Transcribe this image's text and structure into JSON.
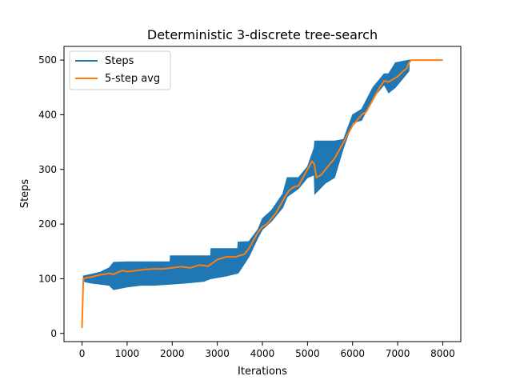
{
  "chart_data": {
    "type": "line",
    "title": "Deterministic 3-discrete tree-search",
    "xlabel": "Iterations",
    "ylabel": "Steps",
    "xlim": [
      -400,
      8400
    ],
    "ylim": [
      -15,
      525
    ],
    "xticks": [
      0,
      1000,
      2000,
      3000,
      4000,
      5000,
      6000,
      7000,
      8000
    ],
    "yticks": [
      0,
      100,
      200,
      300,
      400,
      500
    ],
    "grid": false,
    "legend": {
      "placement": "top-left"
    },
    "series": [
      {
        "name": "Steps",
        "color": "#1f77b4",
        "envelope": [
          {
            "x": 0,
            "low": 10,
            "high": 10
          },
          {
            "x": 30,
            "low": 95,
            "high": 105
          },
          {
            "x": 200,
            "low": 92,
            "high": 108
          },
          {
            "x": 400,
            "low": 90,
            "high": 112
          },
          {
            "x": 600,
            "low": 88,
            "high": 120
          },
          {
            "x": 700,
            "low": 80,
            "high": 130
          },
          {
            "x": 1000,
            "low": 85,
            "high": 131
          },
          {
            "x": 1300,
            "low": 88,
            "high": 131
          },
          {
            "x": 1600,
            "low": 88,
            "high": 131
          },
          {
            "x": 1950,
            "low": 90,
            "high": 131
          },
          {
            "x": 1960,
            "low": 90,
            "high": 142
          },
          {
            "x": 2300,
            "low": 92,
            "high": 142
          },
          {
            "x": 2700,
            "low": 95,
            "high": 142
          },
          {
            "x": 2850,
            "low": 100,
            "high": 142
          },
          {
            "x": 2860,
            "low": 100,
            "high": 155
          },
          {
            "x": 3200,
            "low": 105,
            "high": 155
          },
          {
            "x": 3450,
            "low": 110,
            "high": 155
          },
          {
            "x": 3460,
            "low": 110,
            "high": 167
          },
          {
            "x": 3700,
            "low": 140,
            "high": 168
          },
          {
            "x": 3900,
            "low": 175,
            "high": 190
          },
          {
            "x": 4000,
            "low": 190,
            "high": 210
          },
          {
            "x": 4200,
            "low": 205,
            "high": 225
          },
          {
            "x": 4450,
            "low": 230,
            "high": 255
          },
          {
            "x": 4550,
            "low": 250,
            "high": 285
          },
          {
            "x": 4800,
            "low": 265,
            "high": 285
          },
          {
            "x": 5000,
            "low": 285,
            "high": 305
          },
          {
            "x": 5150,
            "low": 290,
            "high": 340
          },
          {
            "x": 5160,
            "low": 255,
            "high": 352
          },
          {
            "x": 5400,
            "low": 275,
            "high": 352
          },
          {
            "x": 5600,
            "low": 285,
            "high": 352
          },
          {
            "x": 5800,
            "low": 340,
            "high": 355
          },
          {
            "x": 6000,
            "low": 385,
            "high": 400
          },
          {
            "x": 6200,
            "low": 390,
            "high": 410
          },
          {
            "x": 6450,
            "low": 430,
            "high": 450
          },
          {
            "x": 6700,
            "low": 455,
            "high": 475
          },
          {
            "x": 6800,
            "low": 440,
            "high": 475
          },
          {
            "x": 6950,
            "low": 450,
            "high": 495
          },
          {
            "x": 7250,
            "low": 480,
            "high": 500
          },
          {
            "x": 7260,
            "low": 500,
            "high": 500
          },
          {
            "x": 8000,
            "low": 500,
            "high": 500
          }
        ]
      },
      {
        "name": "5-step avg",
        "color": "#ff7f0e",
        "x": [
          0,
          30,
          100,
          200,
          300,
          400,
          500,
          600,
          700,
          800,
          900,
          1000,
          1200,
          1400,
          1600,
          1800,
          2000,
          2200,
          2400,
          2600,
          2800,
          3000,
          3200,
          3400,
          3600,
          3700,
          3800,
          3900,
          4000,
          4100,
          4200,
          4300,
          4400,
          4500,
          4600,
          4700,
          4800,
          4900,
          5000,
          5100,
          5150,
          5200,
          5300,
          5400,
          5500,
          5600,
          5700,
          5800,
          5900,
          6000,
          6100,
          6200,
          6300,
          6400,
          6500,
          6600,
          6700,
          6800,
          6900,
          7000,
          7100,
          7200,
          7250,
          7300,
          8000
        ],
        "y": [
          10,
          100,
          102,
          103,
          105,
          107,
          108,
          110,
          108,
          112,
          115,
          113,
          115,
          117,
          118,
          118,
          120,
          122,
          120,
          125,
          123,
          135,
          140,
          140,
          145,
          155,
          170,
          185,
          195,
          200,
          210,
          220,
          235,
          250,
          262,
          268,
          270,
          285,
          300,
          315,
          310,
          285,
          290,
          300,
          310,
          320,
          335,
          350,
          365,
          380,
          390,
          400,
          405,
          420,
          435,
          450,
          462,
          460,
          465,
          470,
          478,
          485,
          495,
          500,
          500
        ]
      }
    ]
  }
}
